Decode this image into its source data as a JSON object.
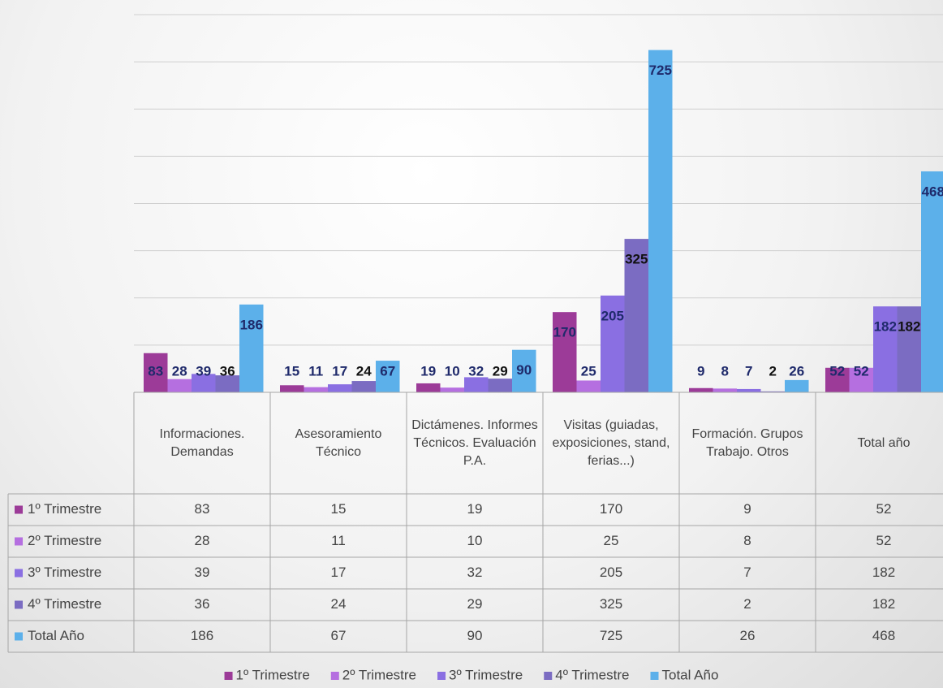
{
  "chart_data": {
    "type": "bar",
    "categories": [
      "Informaciones. Demandas",
      "Asesoramiento Técnico",
      "Dictámenes. Informes Técnicos. Evaluación P.A.",
      "Visitas (guiadas, exposiciones, stand, ferias...)",
      "Formación. Grupos Trabajo. Otros",
      "Total año"
    ],
    "series": [
      {
        "name": "1º Trimestre",
        "color": "#9c3b98",
        "values": [
          83,
          15,
          19,
          170,
          9,
          52
        ]
      },
      {
        "name": "2º Trimestre",
        "color": "#b56fe0",
        "values": [
          28,
          11,
          10,
          25,
          8,
          52
        ]
      },
      {
        "name": "3º Trimestre",
        "color": "#8a6fe2",
        "values": [
          39,
          17,
          32,
          205,
          7,
          182
        ]
      },
      {
        "name": "4º Trimestre",
        "color": "#7b6cc2",
        "values": [
          36,
          24,
          29,
          325,
          2,
          182
        ]
      },
      {
        "name": "Total Año",
        "color": "#5cb0ea",
        "values": [
          186,
          67,
          90,
          725,
          26,
          468
        ]
      }
    ],
    "ylim": [
      0,
      800
    ],
    "yticks": [
      0,
      100,
      200,
      300,
      400,
      500,
      600,
      700,
      800
    ],
    "grid": true
  }
}
